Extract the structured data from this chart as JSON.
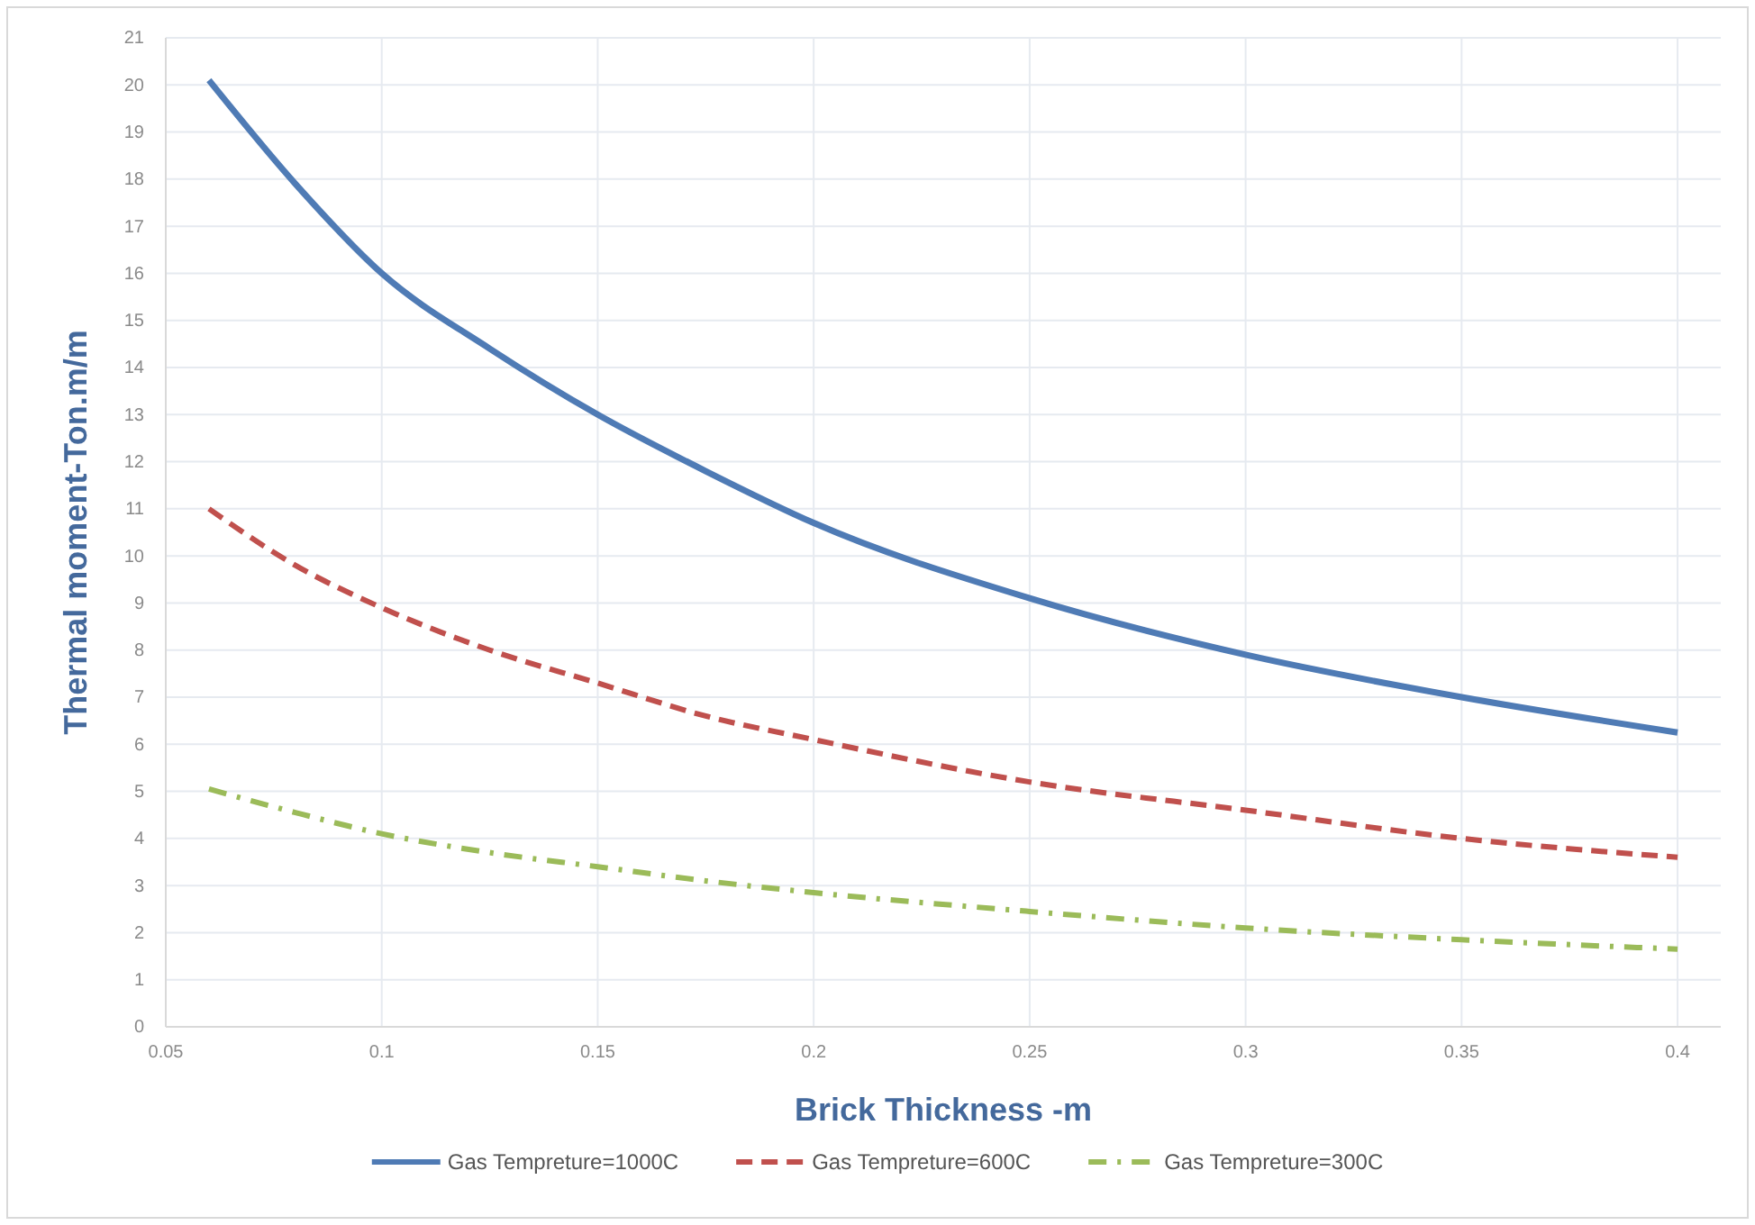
{
  "chart_data": {
    "type": "line",
    "xlabel": "Brick Thickness -m",
    "ylabel": "Thermal moment-Ton.m/m",
    "x": [
      0.06,
      0.08,
      0.1,
      0.125,
      0.15,
      0.175,
      0.2,
      0.25,
      0.3,
      0.35,
      0.4
    ],
    "series": [
      {
        "name": "Gas Tempreture=1000C",
        "color": "#4f7bb5",
        "line_style": "solid",
        "values": [
          20.1,
          17.9,
          16,
          14.4,
          13,
          11.8,
          10.7,
          9.1,
          7.9,
          7.0,
          6.25
        ]
      },
      {
        "name": "Gas Tempreture=600C",
        "color": "#c0504d",
        "line_style": "dashed",
        "values": [
          11,
          9.8,
          8.9,
          8.0,
          7.3,
          6.6,
          6.1,
          5.2,
          4.6,
          4.0,
          3.6
        ]
      },
      {
        "name": "Gas Tempreture=300C",
        "color": "#9bbb59",
        "line_style": "dashdot",
        "values": [
          5.05,
          4.55,
          4.1,
          3.7,
          3.4,
          3.1,
          2.85,
          2.45,
          2.1,
          1.85,
          1.65
        ]
      }
    ],
    "xlim": [
      0.05,
      0.41
    ],
    "xticks": [
      0.05,
      0.1,
      0.15,
      0.2,
      0.25,
      0.3,
      0.35,
      0.4
    ],
    "ylim": [
      0,
      21
    ],
    "yticks": [
      0,
      1,
      2,
      3,
      4,
      5,
      6,
      7,
      8,
      9,
      10,
      11,
      12,
      13,
      14,
      15,
      16,
      17,
      18,
      19,
      20,
      21
    ],
    "grid": true,
    "legend": "bottom",
    "marker": "none"
  }
}
